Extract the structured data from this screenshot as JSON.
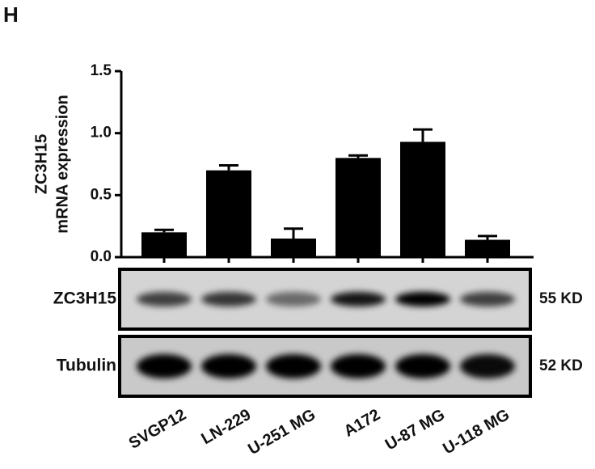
{
  "chart_data": {
    "type": "bar",
    "panel_label": "H",
    "ylabel": [
      "ZC3H15",
      "mRNA expression"
    ],
    "categories": [
      "SVGP12",
      "LN-229",
      "U-251 MG",
      "A172",
      "U-87 MG",
      "U-118 MG"
    ],
    "values": [
      0.2,
      0.7,
      0.15,
      0.8,
      0.93,
      0.14
    ],
    "errors": [
      0.02,
      0.04,
      0.08,
      0.02,
      0.1,
      0.03
    ],
    "color": "#000000",
    "ylim": [
      0,
      1.5
    ],
    "yticks": [
      {
        "value": 0,
        "label": "0.0"
      },
      0.5,
      {
        "value": 1,
        "label": "1.0"
      },
      1.5
    ],
    "blots": [
      {
        "label": "ZC3H15",
        "size": "55 KD"
      },
      {
        "label": "Tubulin",
        "size": "52 KD"
      }
    ]
  }
}
